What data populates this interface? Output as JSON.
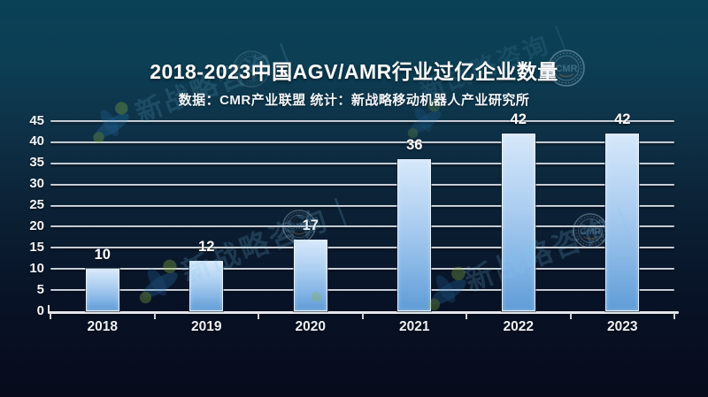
{
  "header": {
    "title": "2018-2023中国AGV/AMR行业过亿企业数量",
    "subtitle": "数据：CMR产业联盟  统计：新战略移动机器人产业研究所"
  },
  "chart_data": {
    "type": "bar",
    "categories": [
      "2018",
      "2019",
      "2020",
      "2021",
      "2022",
      "2023"
    ],
    "values": [
      10,
      12,
      17,
      36,
      42,
      42
    ],
    "title": "2018-2023中国AGV/AMR行业过亿企业数量",
    "xlabel": "",
    "ylabel": "",
    "ylim": [
      0,
      45
    ],
    "yticks": [
      0,
      5,
      10,
      15,
      20,
      25,
      30,
      35,
      40,
      45
    ],
    "grid": true,
    "legend": "none",
    "colors": {
      "bar_top": "#d6e8fa",
      "bar_bottom": "#5f9cd6",
      "gridline": "#b9c0c9",
      "axis": "#e3e7ea",
      "label_text": "#ffffff",
      "background_top": "#0a4156",
      "background_bottom": "#070b1c"
    }
  },
  "watermark": {
    "text": "新战略咨询｜",
    "stamp_text": "CMR",
    "colors": {
      "ribbon": "#2f86c8",
      "dot": "#8ab23c",
      "text": "#7ecbf2",
      "stamp_ring": "#b9d2e4",
      "stamp_text": "#7fb3d9"
    }
  }
}
